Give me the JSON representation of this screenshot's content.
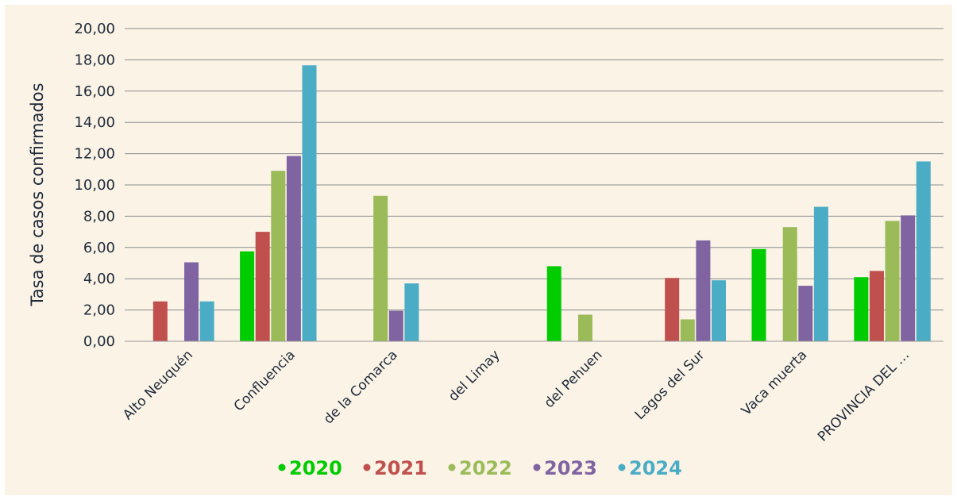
{
  "chart_data": {
    "type": "bar",
    "title": "",
    "xlabel": "",
    "ylabel": "Tasa de casos confirmados",
    "ylim": [
      0,
      20
    ],
    "ytick_step": 2,
    "ytick_labels": [
      "0,00",
      "2,00",
      "4,00",
      "6,00",
      "8,00",
      "10,00",
      "12,00",
      "14,00",
      "16,00",
      "18,00",
      "20,00"
    ],
    "grid": true,
    "legend_position": "bottom",
    "categories": [
      "Alto Neuquén",
      "Confluencia",
      "de la Comarca",
      "del Limay",
      "del Pehuen",
      "Lagos del Sur",
      "Vaca muerta",
      "PROVINCIA DEL …"
    ],
    "series": [
      {
        "name": "2020",
        "color": "#00cc00",
        "values": [
          0,
          5.75,
          0,
          0,
          4.8,
          0,
          5.9,
          4.1
        ]
      },
      {
        "name": "2021",
        "color": "#c0504d",
        "values": [
          2.55,
          7.0,
          0,
          0,
          0,
          4.05,
          0,
          4.5
        ]
      },
      {
        "name": "2022",
        "color": "#9bbb59",
        "values": [
          0,
          10.9,
          9.3,
          0,
          1.7,
          1.4,
          7.3,
          7.7
        ]
      },
      {
        "name": "2023",
        "color": "#8064a2",
        "values": [
          5.05,
          11.85,
          1.95,
          0,
          0,
          6.45,
          3.55,
          8.05
        ]
      },
      {
        "name": "2024",
        "color": "#4bacc6",
        "values": [
          2.55,
          17.65,
          3.7,
          0,
          0,
          3.9,
          8.6,
          11.5
        ]
      }
    ]
  }
}
